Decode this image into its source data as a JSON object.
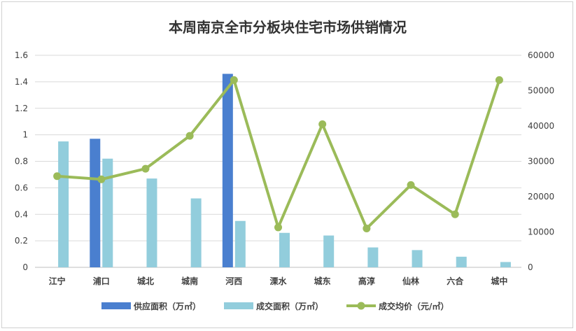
{
  "chart_data": {
    "type": "bar+line",
    "title": "本周南京全市分板块住宅市场供销情况",
    "categories": [
      "江宁",
      "浦口",
      "城北",
      "城南",
      "河西",
      "溧水",
      "城东",
      "高淳",
      "仙林",
      "六合",
      "城中"
    ],
    "series": [
      {
        "name": "供应面积（万㎡）",
        "type": "bar",
        "axis": "left",
        "color": "#4a7fcf",
        "values": [
          0,
          0.97,
          0,
          0,
          1.46,
          0,
          0,
          0,
          0,
          0,
          0
        ]
      },
      {
        "name": "成交面积（万㎡）",
        "type": "bar",
        "axis": "left",
        "color": "#92cddc",
        "values": [
          0.95,
          0.82,
          0.67,
          0.52,
          0.35,
          0.26,
          0.24,
          0.15,
          0.13,
          0.08,
          0.04
        ]
      },
      {
        "name": "成交均价（元/㎡）",
        "type": "line",
        "axis": "right",
        "color": "#9bbb59",
        "values": [
          25800,
          24900,
          27900,
          37200,
          53000,
          11300,
          40500,
          11000,
          23300,
          15000,
          53000
        ]
      }
    ],
    "y_left": {
      "min": 0,
      "max": 1.6,
      "ticks": [
        "0",
        "0.2",
        "0.4",
        "0.6",
        "0.8",
        "1",
        "1.2",
        "1.4",
        "1.6"
      ]
    },
    "y_right": {
      "min": 0,
      "max": 60000,
      "ticks": [
        "0",
        "10000",
        "20000",
        "30000",
        "40000",
        "50000",
        "60000"
      ]
    },
    "grid": true,
    "legend_position": "bottom"
  }
}
